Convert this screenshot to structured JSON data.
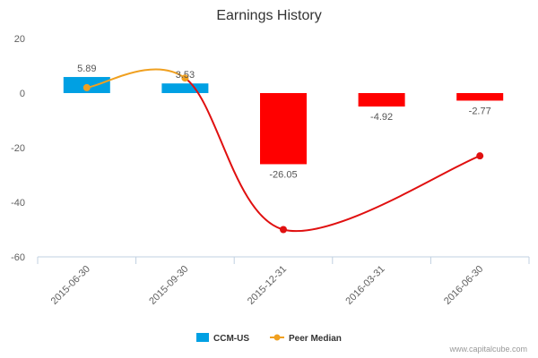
{
  "chart_data": {
    "type": "bar",
    "title": "Earnings History",
    "categories": [
      "2015-06-30",
      "2015-09-30",
      "2015-12-31",
      "2016-03-31",
      "2016-06-30"
    ],
    "series": [
      {
        "name": "CCM-US",
        "type": "bar",
        "values": [
          5.89,
          3.53,
          -26.05,
          -4.92,
          -2.77
        ],
        "labels": [
          "5.89",
          "3.53",
          "-26.05",
          "-4.92",
          "-2.77"
        ],
        "positive_color": "#00a0e3",
        "negative_color": "#ff0000"
      },
      {
        "name": "Peer Median",
        "type": "line",
        "values": [
          2.0,
          5.5,
          -50.0,
          null,
          -23.0
        ],
        "color_gain": "#f0a020",
        "color_loss": "#e01010"
      }
    ],
    "y_ticks": [
      "20",
      "0",
      "-20",
      "-40",
      "-60"
    ],
    "ylim": [
      -60,
      20
    ],
    "grid": false,
    "legend_position": "bottom-center"
  },
  "watermark": "www.capitalcube.com"
}
